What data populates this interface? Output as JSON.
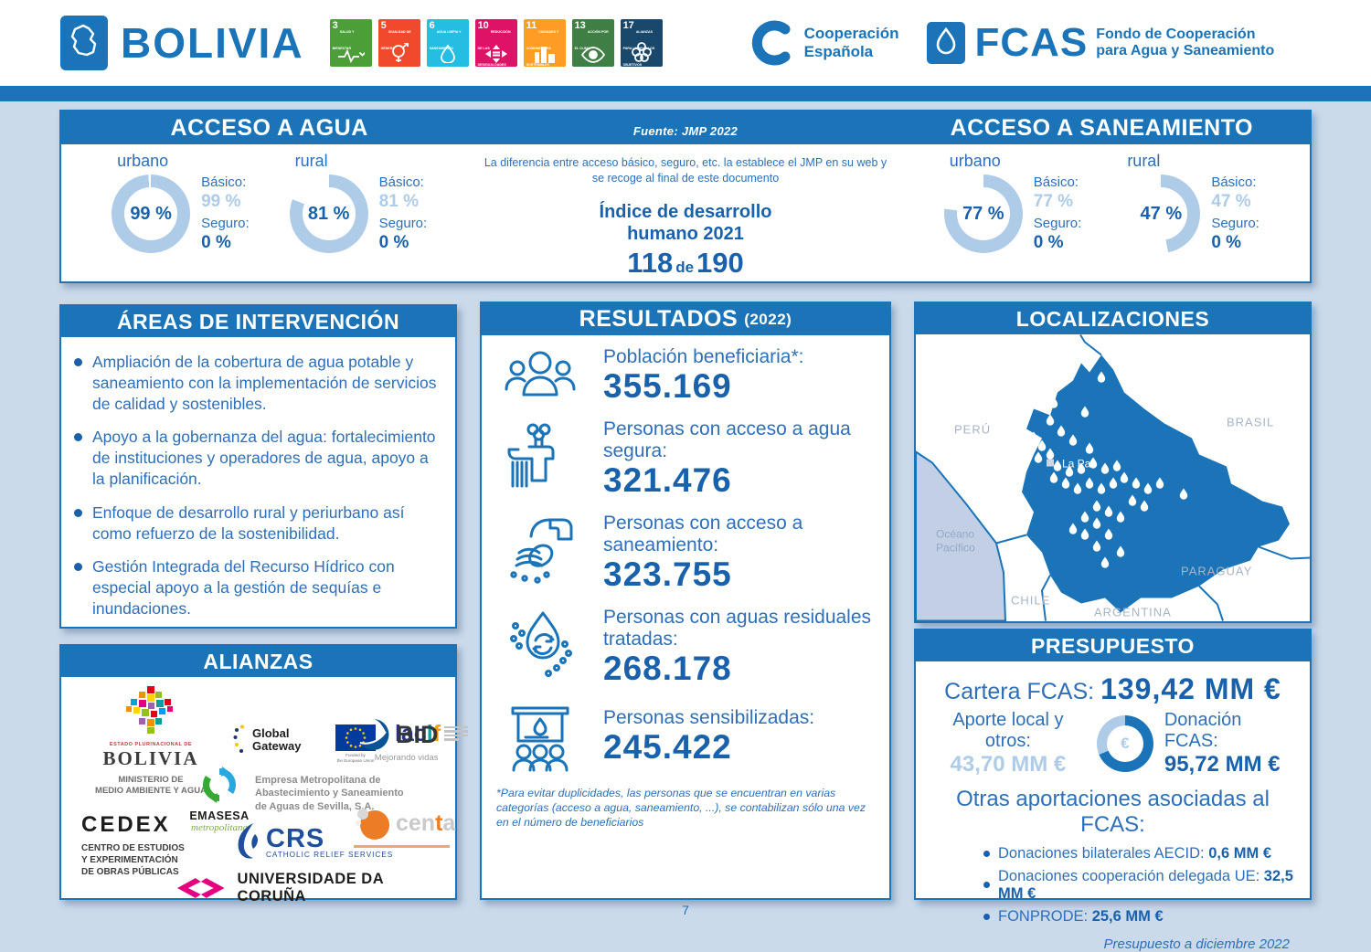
{
  "header": {
    "country": "BOLIVIA",
    "coop": {
      "line1": "Cooperación",
      "line2": "Española"
    },
    "fcas": {
      "acronym": "FCAS",
      "line1": "Fondo de Cooperación",
      "line2": "para Agua y Saneamiento"
    },
    "sdg": [
      {
        "num": "3",
        "label": "SALUD Y BIENESTAR",
        "color": "#4C9F38"
      },
      {
        "num": "5",
        "label": "IGUALDAD DE GÉNERO",
        "color": "#EF4A2B"
      },
      {
        "num": "6",
        "label": "AGUA LIMPIA Y SANEAMIENTO",
        "color": "#26BDE2"
      },
      {
        "num": "10",
        "label": "REDUCCIÓN DE LAS DESIGUALDADES",
        "color": "#DD1367"
      },
      {
        "num": "11",
        "label": "CIUDADES Y COMUNIDADES SOSTENIBLES",
        "color": "#FD9D24"
      },
      {
        "num": "13",
        "label": "ACCIÓN POR EL CLIMA",
        "color": "#3F7E44"
      },
      {
        "num": "17",
        "label": "ALIANZAS PARA LOGRAR LOS OBJETIVOS",
        "color": "#19486A"
      }
    ]
  },
  "source_note": "Fuente: JMP 2022",
  "center_note": "La diferencia entre acceso básico, seguro, etc. la establece el JMP en su web y\nse recoge al final de este documento",
  "hdi": {
    "line1": "Índice de desarrollo",
    "line2": "humano 2021",
    "rank": "118",
    "de": "de",
    "total": "190"
  },
  "access_water": {
    "title": "ACCESO A AGUA",
    "urban": {
      "label": "urbano",
      "pct": "99 %",
      "value": 99,
      "basic_label": "Básico:",
      "basic": "99 %",
      "safe_label": "Seguro:",
      "safe": "0 %"
    },
    "rural": {
      "label": "rural",
      "pct": "81 %",
      "value": 81,
      "basic_label": "Básico:",
      "basic": "81 %",
      "safe_label": "Seguro:",
      "safe": "0 %"
    }
  },
  "access_sanitation": {
    "title": "ACCESO A SANEAMIENTO",
    "urban": {
      "label": "urbano",
      "pct": "77 %",
      "value": 77,
      "basic_label": "Básico:",
      "basic": "77 %",
      "safe_label": "Seguro:",
      "safe": "0 %"
    },
    "rural": {
      "label": "rural",
      "pct": "47 %",
      "value": 47,
      "basic_label": "Básico:",
      "basic": "47 %",
      "safe_label": "Seguro:",
      "safe": "0 %"
    }
  },
  "areas": {
    "title": "ÁREAS DE INTERVENCIÓN",
    "bullets": [
      "Ampliación de la cobertura de agua potable y saneamiento con la implementación de servicios de calidad y sostenibles.",
      "Apoyo a la gobernanza del agua: fortalecimiento de instituciones y operadores de agua, apoyo a la planificación.",
      "Enfoque de desarrollo rural y periurbano así como refuerzo de la sostenibilidad.",
      "Gestión Integrada del Recurso Hídrico con especial apoyo a la gestión de sequías e inundaciones."
    ]
  },
  "results": {
    "title": "RESULTADOS",
    "year": "(2022)",
    "items": [
      {
        "icon": "beneficiaries-icon",
        "label": "Población beneficiaria*:",
        "value": "355.169"
      },
      {
        "icon": "water-tap-icon",
        "label": "Personas con acceso a agua segura:",
        "value": "321.476"
      },
      {
        "icon": "sanitation-pipe-icon",
        "label": "Personas con acceso a saneamiento:",
        "value": "323.755"
      },
      {
        "icon": "wastewater-treatment-icon",
        "label": "Personas con aguas residuales tratadas:",
        "value": "268.178"
      },
      {
        "icon": "awareness-icon",
        "label": "Personas sensibilizadas:",
        "value": "245.422"
      }
    ],
    "footnote": "*Para evitar duplicidades, las personas que se encuentran en varias categorías (acceso a agua, saneamiento, ...), se contabilizan sólo una vez en el número de beneficiarios"
  },
  "locations": {
    "title": "LOCALIZACIONES",
    "peru": "PERÚ",
    "brasil": "BRASIL",
    "chile": "CHILE",
    "argentina": "ARGENTINA",
    "paraguay": "PARAGUAY",
    "ocean1": "Océano",
    "ocean2": "Pacífico",
    "city": "La Paz"
  },
  "alliances": {
    "title": "ALIANZAS",
    "bolivia": {
      "small": "ESTADO PLURINACIONAL DE",
      "name": "BOLIVIA",
      "ministry": "MINISTERIO DE\nMEDIO AMBIENTE Y AGUA"
    },
    "gateway": {
      "line1": "Global",
      "line2": "Gateway"
    },
    "eu": {
      "caption": "Funded by\nthe European Union"
    },
    "lacif": {
      "p1": "lac",
      "p2": "i",
      "p3": "f"
    },
    "bid": {
      "name": "BID",
      "tagline": "Mejorando vidas"
    },
    "emasesa": {
      "name": "EMASESA",
      "script": "metropolitana",
      "desc": "Empresa Metropolitana de\nAbastecimiento y Saneamiento\nde Aguas de Sevilla, S.A."
    },
    "cedex": {
      "name": "CEDEX",
      "desc": "CENTRO DE ESTUDIOS\nY EXPERIMENTACIÓN\nDE OBRAS PÚBLICAS"
    },
    "crs": {
      "name": "CRS",
      "tagline": "CATHOLIC RELIEF SERVICES"
    },
    "centa": {
      "p1": "cen",
      "p2": "t",
      "p3": "a"
    },
    "udc": {
      "name": "UNIVERSIDADE DA CORUÑA"
    }
  },
  "budget": {
    "title": "PRESUPUESTO",
    "cartera_label": "Cartera FCAS:",
    "cartera_value": "139,42 MM €",
    "aporte_label": "Aporte local y otros:",
    "aporte_value": "43,70 MM €",
    "euro": "€",
    "donacion_label": "Donación FCAS:",
    "donacion_value": "95,72 MM €",
    "otras_title": "Otras aportaciones asociadas al FCAS:",
    "bullets": [
      {
        "label": "Donaciones bilaterales AECID:",
        "value": "0,6 MM €"
      },
      {
        "label": "Donaciones cooperación delegada UE:",
        "value": "32,5 MM €"
      },
      {
        "label": "FONPRODE:",
        "value": "25,6 MM €"
      }
    ],
    "donut": {
      "dark_pct": 68.66
    },
    "date_note": "Presupuesto a diciembre 2022"
  },
  "page_number": "7",
  "chart_data": [
    {
      "type": "pie",
      "title": "Acceso a agua - urbano",
      "categories": [
        "Básico",
        "Seguro"
      ],
      "values": [
        99,
        0
      ],
      "unit": "%"
    },
    {
      "type": "pie",
      "title": "Acceso a agua - rural",
      "categories": [
        "Básico",
        "Seguro"
      ],
      "values": [
        81,
        0
      ],
      "unit": "%"
    },
    {
      "type": "pie",
      "title": "Acceso a saneamiento - urbano",
      "categories": [
        "Básico",
        "Seguro"
      ],
      "values": [
        77,
        0
      ],
      "unit": "%"
    },
    {
      "type": "pie",
      "title": "Acceso a saneamiento - rural",
      "categories": [
        "Básico",
        "Seguro"
      ],
      "values": [
        47,
        0
      ],
      "unit": "%"
    },
    {
      "type": "pie",
      "title": "Cartera FCAS 139,42 MM €",
      "categories": [
        "Donación FCAS",
        "Aporte local y otros"
      ],
      "values": [
        95.72,
        43.7
      ],
      "unit": "MM €"
    }
  ]
}
